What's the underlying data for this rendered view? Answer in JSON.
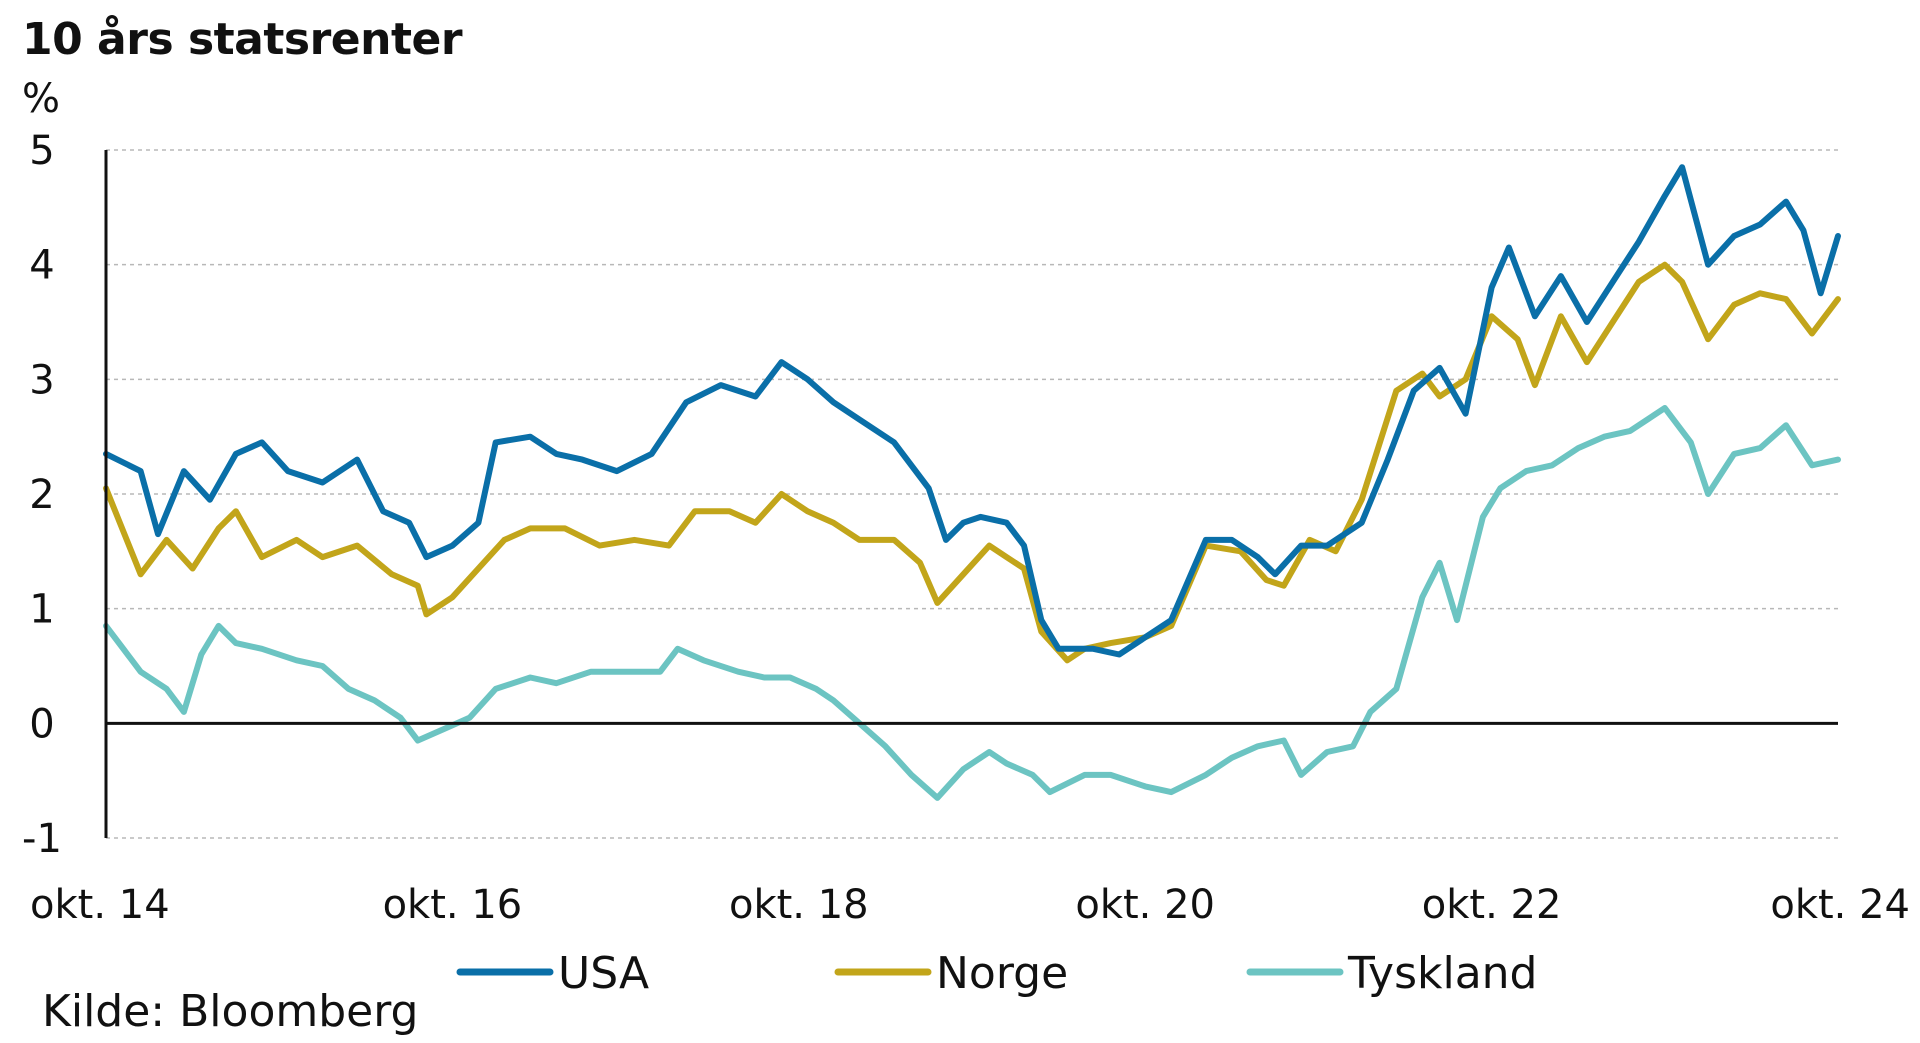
{
  "chart_data": {
    "type": "line",
    "title": "10 års statsrenter",
    "ylabel": "%",
    "ylim": [
      -1,
      5
    ],
    "yticks": [
      "5",
      "4",
      "3",
      "2",
      "1",
      "0",
      "-1"
    ],
    "xlim": [
      2014.75,
      2024.75
    ],
    "xticks": [
      {
        "x": 2014.75,
        "label": "okt. 14"
      },
      {
        "x": 2016.75,
        "label": "okt. 16"
      },
      {
        "x": 2018.75,
        "label": "okt. 18"
      },
      {
        "x": 2020.75,
        "label": "okt. 20"
      },
      {
        "x": 2022.75,
        "label": "okt. 22"
      },
      {
        "x": 2024.75,
        "label": "okt. 24"
      }
    ],
    "grid": true,
    "legend_position": "bottom",
    "source": "Kilde: Bloomberg",
    "series": [
      {
        "name": "USA",
        "color": "#0a6fa8",
        "points": [
          [
            2014.75,
            2.35
          ],
          [
            2014.95,
            2.2
          ],
          [
            2015.05,
            1.65
          ],
          [
            2015.2,
            2.2
          ],
          [
            2015.35,
            1.95
          ],
          [
            2015.5,
            2.35
          ],
          [
            2015.65,
            2.45
          ],
          [
            2015.8,
            2.2
          ],
          [
            2016.0,
            2.1
          ],
          [
            2016.2,
            2.3
          ],
          [
            2016.35,
            1.85
          ],
          [
            2016.5,
            1.75
          ],
          [
            2016.6,
            1.45
          ],
          [
            2016.75,
            1.55
          ],
          [
            2016.9,
            1.75
          ],
          [
            2017.0,
            2.45
          ],
          [
            2017.2,
            2.5
          ],
          [
            2017.35,
            2.35
          ],
          [
            2017.5,
            2.3
          ],
          [
            2017.7,
            2.2
          ],
          [
            2017.9,
            2.35
          ],
          [
            2018.1,
            2.8
          ],
          [
            2018.3,
            2.95
          ],
          [
            2018.5,
            2.85
          ],
          [
            2018.65,
            3.15
          ],
          [
            2018.8,
            3.0
          ],
          [
            2018.95,
            2.8
          ],
          [
            2019.1,
            2.65
          ],
          [
            2019.3,
            2.45
          ],
          [
            2019.5,
            2.05
          ],
          [
            2019.6,
            1.6
          ],
          [
            2019.7,
            1.75
          ],
          [
            2019.8,
            1.8
          ],
          [
            2019.95,
            1.75
          ],
          [
            2020.05,
            1.55
          ],
          [
            2020.15,
            0.9
          ],
          [
            2020.25,
            0.65
          ],
          [
            2020.45,
            0.65
          ],
          [
            2020.6,
            0.6
          ],
          [
            2020.75,
            0.75
          ],
          [
            2020.9,
            0.9
          ],
          [
            2021.1,
            1.6
          ],
          [
            2021.25,
            1.6
          ],
          [
            2021.4,
            1.45
          ],
          [
            2021.5,
            1.3
          ],
          [
            2021.65,
            1.55
          ],
          [
            2021.8,
            1.55
          ],
          [
            2022.0,
            1.75
          ],
          [
            2022.15,
            2.3
          ],
          [
            2022.3,
            2.9
          ],
          [
            2022.45,
            3.1
          ],
          [
            2022.6,
            2.7
          ],
          [
            2022.75,
            3.8
          ],
          [
            2022.85,
            4.15
          ],
          [
            2023.0,
            3.55
          ],
          [
            2023.15,
            3.9
          ],
          [
            2023.3,
            3.5
          ],
          [
            2023.45,
            3.85
          ],
          [
            2023.6,
            4.2
          ],
          [
            2023.75,
            4.6
          ],
          [
            2023.85,
            4.85
          ],
          [
            2024.0,
            4.0
          ],
          [
            2024.15,
            4.25
          ],
          [
            2024.3,
            4.35
          ],
          [
            2024.45,
            4.55
          ],
          [
            2024.55,
            4.3
          ],
          [
            2024.65,
            3.75
          ],
          [
            2024.75,
            4.25
          ]
        ]
      },
      {
        "name": "Norge",
        "color": "#c2a51a",
        "points": [
          [
            2014.75,
            2.05
          ],
          [
            2014.95,
            1.3
          ],
          [
            2015.1,
            1.6
          ],
          [
            2015.25,
            1.35
          ],
          [
            2015.4,
            1.7
          ],
          [
            2015.5,
            1.85
          ],
          [
            2015.65,
            1.45
          ],
          [
            2015.85,
            1.6
          ],
          [
            2016.0,
            1.45
          ],
          [
            2016.2,
            1.55
          ],
          [
            2016.4,
            1.3
          ],
          [
            2016.55,
            1.2
          ],
          [
            2016.6,
            0.95
          ],
          [
            2016.75,
            1.1
          ],
          [
            2016.9,
            1.35
          ],
          [
            2017.05,
            1.6
          ],
          [
            2017.2,
            1.7
          ],
          [
            2017.4,
            1.7
          ],
          [
            2017.6,
            1.55
          ],
          [
            2017.8,
            1.6
          ],
          [
            2018.0,
            1.55
          ],
          [
            2018.15,
            1.85
          ],
          [
            2018.35,
            1.85
          ],
          [
            2018.5,
            1.75
          ],
          [
            2018.65,
            2.0
          ],
          [
            2018.8,
            1.85
          ],
          [
            2018.95,
            1.75
          ],
          [
            2019.1,
            1.6
          ],
          [
            2019.3,
            1.6
          ],
          [
            2019.45,
            1.4
          ],
          [
            2019.55,
            1.05
          ],
          [
            2019.7,
            1.3
          ],
          [
            2019.85,
            1.55
          ],
          [
            2019.95,
            1.45
          ],
          [
            2020.05,
            1.35
          ],
          [
            2020.15,
            0.8
          ],
          [
            2020.3,
            0.55
          ],
          [
            2020.4,
            0.65
          ],
          [
            2020.55,
            0.7
          ],
          [
            2020.75,
            0.75
          ],
          [
            2020.9,
            0.85
          ],
          [
            2021.1,
            1.55
          ],
          [
            2021.3,
            1.5
          ],
          [
            2021.45,
            1.25
          ],
          [
            2021.55,
            1.2
          ],
          [
            2021.7,
            1.6
          ],
          [
            2021.85,
            1.5
          ],
          [
            2022.0,
            1.95
          ],
          [
            2022.2,
            2.9
          ],
          [
            2022.35,
            3.05
          ],
          [
            2022.45,
            2.85
          ],
          [
            2022.6,
            3.0
          ],
          [
            2022.75,
            3.55
          ],
          [
            2022.9,
            3.35
          ],
          [
            2023.0,
            2.95
          ],
          [
            2023.15,
            3.55
          ],
          [
            2023.3,
            3.15
          ],
          [
            2023.45,
            3.5
          ],
          [
            2023.6,
            3.85
          ],
          [
            2023.75,
            4.0
          ],
          [
            2023.85,
            3.85
          ],
          [
            2024.0,
            3.35
          ],
          [
            2024.15,
            3.65
          ],
          [
            2024.3,
            3.75
          ],
          [
            2024.45,
            3.7
          ],
          [
            2024.6,
            3.4
          ],
          [
            2024.75,
            3.7
          ]
        ]
      },
      {
        "name": "Tyskland",
        "color": "#6cc4c2",
        "points": [
          [
            2014.75,
            0.85
          ],
          [
            2014.95,
            0.45
          ],
          [
            2015.1,
            0.3
          ],
          [
            2015.2,
            0.1
          ],
          [
            2015.3,
            0.6
          ],
          [
            2015.4,
            0.85
          ],
          [
            2015.5,
            0.7
          ],
          [
            2015.65,
            0.65
          ],
          [
            2015.85,
            0.55
          ],
          [
            2016.0,
            0.5
          ],
          [
            2016.15,
            0.3
          ],
          [
            2016.3,
            0.2
          ],
          [
            2016.45,
            0.05
          ],
          [
            2016.55,
            -0.15
          ],
          [
            2016.7,
            -0.05
          ],
          [
            2016.85,
            0.05
          ],
          [
            2017.0,
            0.3
          ],
          [
            2017.2,
            0.4
          ],
          [
            2017.35,
            0.35
          ],
          [
            2017.55,
            0.45
          ],
          [
            2017.75,
            0.45
          ],
          [
            2017.95,
            0.45
          ],
          [
            2018.05,
            0.65
          ],
          [
            2018.2,
            0.55
          ],
          [
            2018.4,
            0.45
          ],
          [
            2018.55,
            0.4
          ],
          [
            2018.7,
            0.4
          ],
          [
            2018.85,
            0.3
          ],
          [
            2018.95,
            0.2
          ],
          [
            2019.1,
            0.0
          ],
          [
            2019.25,
            -0.2
          ],
          [
            2019.4,
            -0.45
          ],
          [
            2019.55,
            -0.65
          ],
          [
            2019.7,
            -0.4
          ],
          [
            2019.85,
            -0.25
          ],
          [
            2019.95,
            -0.35
          ],
          [
            2020.1,
            -0.45
          ],
          [
            2020.2,
            -0.6
          ],
          [
            2020.4,
            -0.45
          ],
          [
            2020.55,
            -0.45
          ],
          [
            2020.75,
            -0.55
          ],
          [
            2020.9,
            -0.6
          ],
          [
            2021.1,
            -0.45
          ],
          [
            2021.25,
            -0.3
          ],
          [
            2021.4,
            -0.2
          ],
          [
            2021.55,
            -0.15
          ],
          [
            2021.65,
            -0.45
          ],
          [
            2021.8,
            -0.25
          ],
          [
            2021.95,
            -0.2
          ],
          [
            2022.05,
            0.1
          ],
          [
            2022.2,
            0.3
          ],
          [
            2022.35,
            1.1
          ],
          [
            2022.45,
            1.4
          ],
          [
            2022.55,
            0.9
          ],
          [
            2022.7,
            1.8
          ],
          [
            2022.8,
            2.05
          ],
          [
            2022.95,
            2.2
          ],
          [
            2023.1,
            2.25
          ],
          [
            2023.25,
            2.4
          ],
          [
            2023.4,
            2.5
          ],
          [
            2023.55,
            2.55
          ],
          [
            2023.75,
            2.75
          ],
          [
            2023.9,
            2.45
          ],
          [
            2024.0,
            2.0
          ],
          [
            2024.15,
            2.35
          ],
          [
            2024.3,
            2.4
          ],
          [
            2024.45,
            2.6
          ],
          [
            2024.6,
            2.25
          ],
          [
            2024.75,
            2.3
          ]
        ]
      }
    ]
  }
}
